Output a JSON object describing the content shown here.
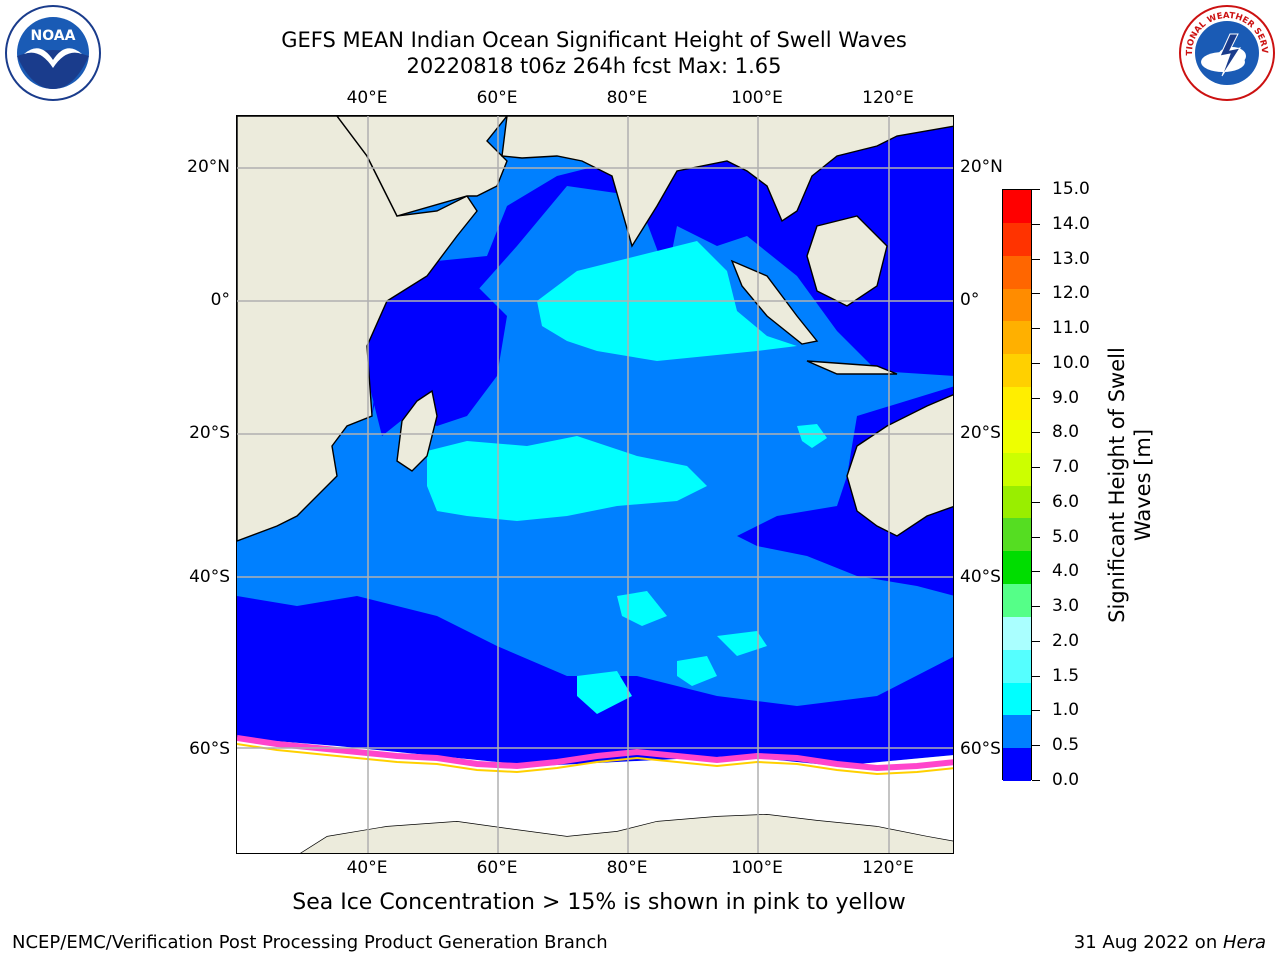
{
  "title_line1": "GEFS MEAN Indian Ocean Significant Height of Swell Waves",
  "title_line2": "20220818 t06z 264h fcst   Max: 1.65",
  "lon_ticks": [
    "40°E",
    "60°E",
    "80°E",
    "100°E",
    "120°E"
  ],
  "lat_ticks_left": [
    "20°N",
    "0°",
    "20°S",
    "40°S",
    "60°S"
  ],
  "lat_ticks_right": [
    "20°N",
    "0°",
    "20°S",
    "40°S",
    "60°S"
  ],
  "colorbar": {
    "title_line1": "Significant Height of Swell",
    "title_line2": "Waves [m]",
    "labels": [
      "15.0",
      "14.0",
      "13.0",
      "12.0",
      "11.0",
      "10.0",
      "9.0",
      "8.0",
      "7.0",
      "6.0",
      "5.0",
      "4.0",
      "3.0",
      "2.0",
      "1.5",
      "1.0",
      "0.5",
      "0.0"
    ],
    "colors": [
      "#ff0000",
      "#ff3300",
      "#ff6600",
      "#ff8c00",
      "#ffb000",
      "#ffd000",
      "#ffee00",
      "#eeff00",
      "#ccff00",
      "#99ee00",
      "#55dd22",
      "#00dd00",
      "#55ff88",
      "#aaffff",
      "#55ffff",
      "#00ffff",
      "#0080ff",
      "#0000ff"
    ]
  },
  "colors": {
    "land": "#ecebdc",
    "ice": "#ffffff",
    "swell_0_0_5": "#0000ff",
    "swell_0_5_1_0": "#0080ff",
    "swell_1_0_1_5": "#00ffff",
    "ice_edge": "#ff44cc",
    "grid": "#b0b0b0"
  },
  "sea_ice_note": "Sea Ice Concentration > 15% is shown in pink to yellow",
  "footer_left": "NCEP/EMC/Verification Post Processing Product Generation Branch",
  "footer_right_date": "31 Aug 2022 on ",
  "footer_right_machine": "Hera",
  "logos": [
    "noaa-logo",
    "nws-logo"
  ],
  "logo_text": {
    "noaa": "NOAA",
    "nws": "NATIONAL WEATHER SERVICE"
  }
}
